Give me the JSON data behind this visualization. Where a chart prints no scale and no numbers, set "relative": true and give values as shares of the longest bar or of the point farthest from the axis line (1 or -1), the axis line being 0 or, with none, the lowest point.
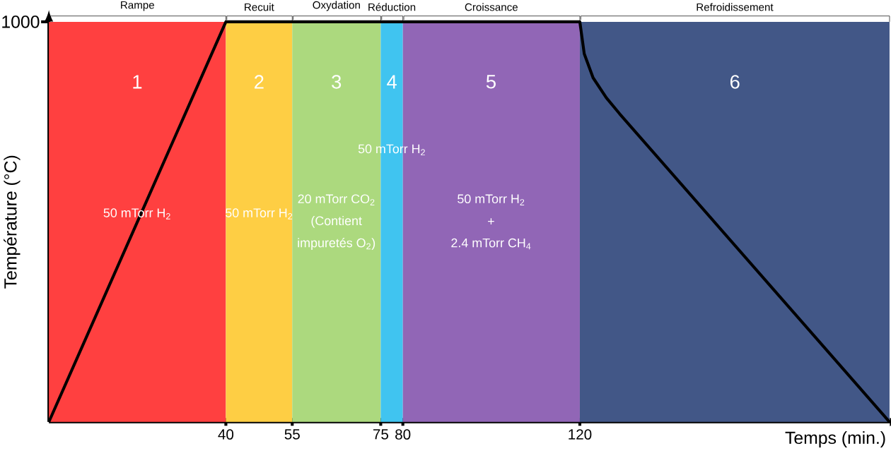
{
  "chart_data": {
    "type": "line",
    "relative": true,
    "xlabel": "Temps (min.)",
    "ylabel": "Température (°C)",
    "xlim": [
      0,
      190
    ],
    "xticks": [
      40,
      55,
      75,
      80,
      120
    ],
    "series": [
      {
        "color": "#000000",
        "line_style": "solid",
        "x": [
          0,
          40,
          120,
          121,
          123,
          126,
          129,
          190
        ],
        "values": [
          0,
          1,
          1,
          0.92,
          0.86,
          0.81,
          0.77,
          0
        ]
      }
    ],
    "bands": [
      {
        "axis": "x",
        "from": 0,
        "to": 40,
        "label": "Rampe",
        "color": "#ff4040"
      },
      {
        "axis": "x",
        "from": 40,
        "to": 55,
        "label": "Recuit",
        "color": "#fece44"
      },
      {
        "axis": "x",
        "from": 55,
        "to": 75,
        "label": "Oxydation",
        "color": "#acd97e"
      },
      {
        "axis": "x",
        "from": 75,
        "to": 80,
        "label": "Réduction",
        "color": "#40c4f0"
      },
      {
        "axis": "x",
        "from": 80,
        "to": 120,
        "label": "Croissance",
        "color": "#9166b6"
      },
      {
        "axis": "x",
        "from": 120,
        "to": 190,
        "label": "Refroidissement",
        "color": "#425787"
      }
    ],
    "annotations": [
      "1",
      "2",
      "3",
      "4",
      "5",
      "6",
      "50 mTorr H$_{2}$",
      "50 mTorr H$_{2}$",
      "20 mTorr CO$_{2}$",
      "(Contient",
      "impuretés O$_{2}$)",
      "50 mTorr H$_{2}$",
      "50 mTorr H$_{2}$",
      "+",
      "2.4 mTorr CH$_{4}$",
      "1000"
    ]
  }
}
